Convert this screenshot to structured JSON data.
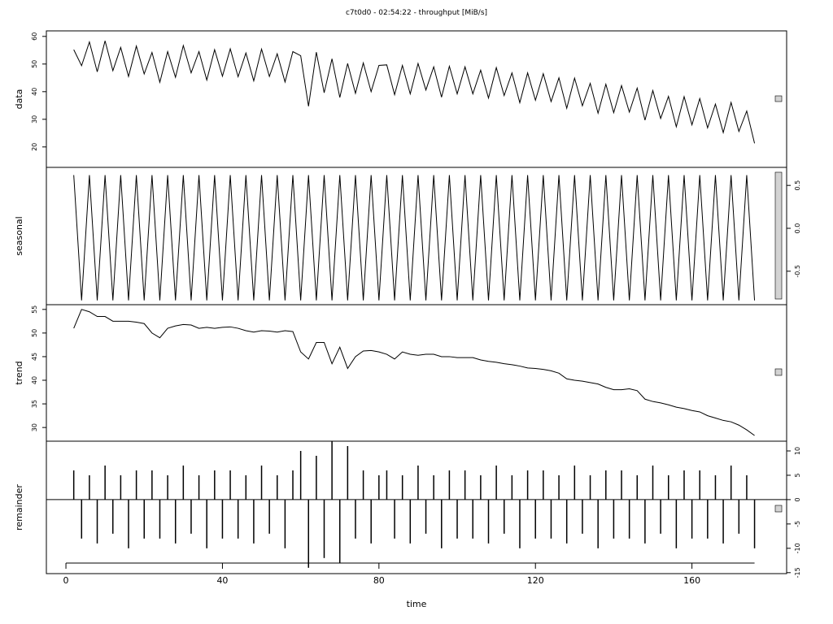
{
  "chart_data": {
    "type": "line",
    "title": "c7t0d0 - 02:54:22 - throughput [MiB/s]",
    "xlabel": "time",
    "xlim": [
      -5,
      184.2
    ],
    "xticks": [
      0,
      40,
      80,
      120,
      160
    ],
    "x": [
      2,
      4,
      6,
      8,
      10,
      12,
      14,
      16,
      18,
      20,
      22,
      24,
      26,
      28,
      30,
      32,
      34,
      36,
      38,
      40,
      42,
      44,
      46,
      48,
      50,
      52,
      54,
      56,
      58,
      60,
      62,
      64,
      66,
      68,
      70,
      72,
      74,
      76,
      78,
      80,
      82,
      84,
      86,
      88,
      90,
      92,
      94,
      96,
      98,
      100,
      102,
      104,
      106,
      108,
      110,
      112,
      114,
      116,
      118,
      120,
      122,
      124,
      126,
      128,
      130,
      132,
      134,
      136,
      138,
      140,
      142,
      144,
      146,
      148,
      150,
      152,
      154,
      156,
      158,
      160,
      162,
      164,
      166,
      168,
      170,
      172,
      174,
      176
    ],
    "panels": [
      {
        "ylabel": "data",
        "style": "line",
        "axis_side": "left",
        "ylim": [
          12.6,
          62
        ],
        "yticks": [
          20,
          30,
          40,
          50,
          60
        ],
        "values": [
          55.2,
          49.4,
          58,
          47.2,
          58.4,
          47.6,
          56,
          45.5,
          56.5,
          46.4,
          54.2,
          43.4,
          54.5,
          45.2,
          56.7,
          46.8,
          54.5,
          44.2,
          55.2,
          45.6,
          55.5,
          45.4,
          54,
          43.9,
          55.4,
          45.5,
          53.7,
          43.5,
          54.5,
          53,
          34.7,
          54.3,
          39.6,
          51.9,
          37.9,
          50.2,
          39.4,
          50.4,
          40,
          49.5,
          49.7,
          38.9,
          49.5,
          39.2,
          50.2,
          40.6,
          49,
          38,
          49.2,
          39.2,
          49,
          39.2,
          47.8,
          37.7,
          48.7,
          38.6,
          46.8,
          36,
          46.8,
          36.9,
          46.5,
          36.4,
          45,
          34,
          44.9,
          34.9,
          43,
          32.2,
          42.7,
          32.4,
          42.2,
          32.6,
          41.3,
          29.7,
          40.4,
          30.3,
          38.3,
          27.3,
          38.2,
          28,
          37.5,
          26.9,
          35.5,
          25.2,
          36.1,
          25.6,
          33,
          21.3
        ]
      },
      {
        "ylabel": "seasonal",
        "style": "line",
        "axis_side": "right",
        "ylim": [
          -0.89,
          0.71
        ],
        "yticks": [
          0.5,
          {
            "value": 0,
            "label": "0.0"
          },
          -0.5
        ],
        "values": [
          0.62,
          -0.84,
          0.62,
          -0.84,
          0.62,
          -0.84,
          0.62,
          -0.84,
          0.62,
          -0.84,
          0.62,
          -0.84,
          0.62,
          -0.84,
          0.62,
          -0.84,
          0.62,
          -0.84,
          0.62,
          -0.84,
          0.62,
          -0.84,
          0.62,
          -0.84,
          0.62,
          -0.84,
          0.62,
          -0.84,
          0.62,
          -0.84,
          0.62,
          -0.84,
          0.62,
          -0.84,
          0.62,
          -0.84,
          0.62,
          -0.84,
          0.62,
          -0.84,
          0.62,
          -0.84,
          0.62,
          -0.84,
          0.62,
          -0.84,
          0.62,
          -0.84,
          0.62,
          -0.84,
          0.62,
          -0.84,
          0.62,
          -0.84,
          0.62,
          -0.84,
          0.62,
          -0.84,
          0.62,
          -0.84,
          0.62,
          -0.84,
          0.62,
          -0.84,
          0.62,
          -0.84,
          0.62,
          -0.84,
          0.62,
          -0.84,
          0.62,
          -0.84,
          0.62,
          -0.84,
          0.62,
          -0.84,
          0.62,
          -0.84,
          0.62,
          -0.84,
          0.62,
          -0.84,
          0.62,
          -0.84,
          0.62,
          -0.84,
          0.62,
          -0.84
        ]
      },
      {
        "ylabel": "trend",
        "style": "line",
        "axis_side": "left",
        "ylim": [
          27.1,
          56
        ],
        "yticks": [
          30,
          35,
          40,
          45,
          50,
          55
        ],
        "values": [
          51,
          55,
          54.5,
          53.5,
          53.5,
          52.5,
          52.5,
          52.5,
          52.3,
          52,
          50,
          49,
          51,
          51.5,
          51.8,
          51.7,
          51,
          51.2,
          51,
          51.2,
          51.3,
          51,
          50.5,
          50.2,
          50.5,
          50.4,
          50.2,
          50.5,
          50.3,
          46,
          44.5,
          48,
          48,
          43.5,
          47,
          42.5,
          45,
          46.2,
          46.3,
          46,
          45.5,
          44.5,
          46,
          45.5,
          45.3,
          45.5,
          45.5,
          45,
          45,
          44.8,
          44.8,
          44.8,
          44.3,
          44,
          43.8,
          43.5,
          43.3,
          43,
          42.6,
          42.5,
          42.3,
          42,
          41.5,
          40.3,
          40,
          39.8,
          39.5,
          39.2,
          38.5,
          38,
          38,
          38.2,
          37.8,
          36,
          35.5,
          35.2,
          34.8,
          34.3,
          34,
          33.6,
          33.3,
          32.5,
          32,
          31.5,
          31.2,
          30.5,
          29.5,
          28.3
        ]
      },
      {
        "ylabel": "remainder",
        "style": "h",
        "axis_side": "right",
        "ylim": [
          -15.2,
          12
        ],
        "yticks": [
          10,
          5,
          0,
          -5,
          -10,
          -15
        ],
        "values": [
          6,
          -8,
          5,
          -9,
          7,
          -7,
          5,
          -10,
          6,
          -8,
          6,
          -8,
          5,
          -9,
          7,
          -7,
          5,
          -10,
          6,
          -8,
          6,
          -8,
          5,
          -9,
          7,
          -7,
          5,
          -10,
          6,
          10,
          -14,
          9,
          -12,
          12,
          -13,
          11,
          -8,
          6,
          -9,
          5,
          6,
          -8,
          5,
          -9,
          7,
          -7,
          5,
          -10,
          6,
          -8,
          6,
          -8,
          5,
          -9,
          7,
          -7,
          5,
          -10,
          6,
          -8,
          6,
          -8,
          5,
          -9,
          7,
          -7,
          5,
          -10,
          6,
          -8,
          6,
          -8,
          5,
          -9,
          7,
          -7,
          5,
          -10,
          6,
          -8,
          6,
          -8,
          5,
          -9,
          7,
          -7,
          5,
          -10
        ]
      }
    ]
  }
}
